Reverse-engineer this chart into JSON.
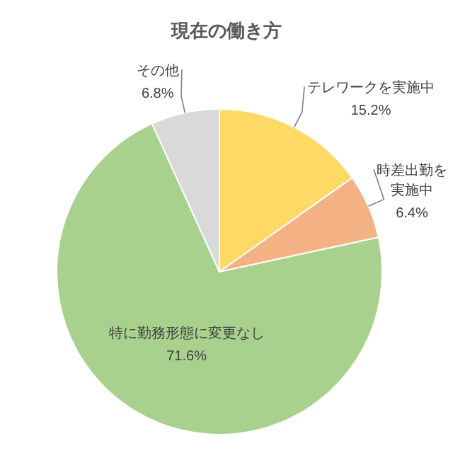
{
  "chart_data": {
    "type": "pie",
    "title": "現在の働き方",
    "categories": [
      "テレワークを実施中",
      "時差出勤を実施中",
      "特に勤務形態に変更なし",
      "その他"
    ],
    "values": [
      15.2,
      6.4,
      71.6,
      6.8
    ],
    "colors": [
      "#ffd966",
      "#f4b183",
      "#a9d18e",
      "#d9d9d9"
    ],
    "value_labels": [
      "15.2%",
      "6.4%",
      "71.6%",
      "6.8%"
    ]
  }
}
